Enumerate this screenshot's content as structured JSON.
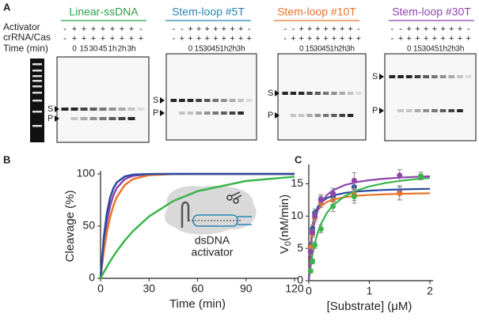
{
  "panel_a": {
    "label": "A",
    "row_labels": [
      "Activator",
      "crRNA/Cas",
      "Time (min)"
    ],
    "marker_lane": true,
    "groups": [
      {
        "title": "Linear-ssDNA",
        "color": "#2e9e48",
        "activator": [
          "-",
          "+",
          "+",
          "+",
          "+",
          "+",
          "+",
          "+",
          "-"
        ],
        "crrna": [
          "-",
          "+",
          "+",
          "+",
          "+",
          "+",
          "+",
          "+",
          "+"
        ],
        "time": [
          "0",
          "15",
          "30",
          "45",
          "1h",
          "2h",
          "3h"
        ],
        "s": "S",
        "p": "P"
      },
      {
        "title": "Stem-loop #5T",
        "color": "#2a84b4",
        "activator": [
          "-",
          "-",
          "+",
          "+",
          "+",
          "+",
          "+",
          "+",
          "+",
          "-"
        ],
        "crrna": [
          "-",
          "+",
          "+",
          "+",
          "+",
          "+",
          "+",
          "+",
          "+",
          "+"
        ],
        "time": [
          "0",
          "15",
          "30",
          "45",
          "1h",
          "2h",
          "3h"
        ],
        "s": "S",
        "p": "P"
      },
      {
        "title": "Stem-loop #10T",
        "color": "#e8742a",
        "activator": [
          "-",
          "-",
          "+",
          "+",
          "+",
          "+",
          "+",
          "+",
          "+",
          "-"
        ],
        "crrna": [
          "-",
          "+",
          "+",
          "+",
          "+",
          "+",
          "+",
          "+",
          "+",
          "+"
        ],
        "time": [
          "0",
          "15",
          "30",
          "45",
          "1h",
          "2h",
          "3h"
        ],
        "s": "S",
        "p": "P"
      },
      {
        "title": "Stem-loop #30T",
        "color": "#8e44ad",
        "activator": [
          "-",
          "-",
          "+",
          "+",
          "+",
          "+",
          "+",
          "+",
          "+",
          "-"
        ],
        "crrna": [
          "-",
          "+",
          "+",
          "+",
          "+",
          "+",
          "+",
          "+",
          "+",
          "+"
        ],
        "time": [
          "0",
          "15",
          "30",
          "45",
          "1h",
          "2h",
          "3h"
        ],
        "s": "S",
        "p": "P"
      }
    ]
  },
  "chart_data": [
    {
      "type": "line",
      "label": "B",
      "ylabel": "Cleavage (%)",
      "xlabel": "Time (min)",
      "inset_text": [
        "dsDNA",
        "activator"
      ],
      "x": [
        0,
        2,
        4,
        6,
        8,
        10,
        15,
        20,
        30,
        45,
        60,
        90,
        120
      ],
      "xlim": [
        0,
        120
      ],
      "xticks": [
        0,
        30,
        60,
        90,
        120
      ],
      "ylim": [
        0,
        100
      ],
      "yticks": [
        0,
        50,
        100
      ],
      "series": [
        {
          "color": "#8e44ad",
          "values": [
            0,
            33.0,
            55.1,
            69.9,
            79.8,
            86.5,
            95.0,
            98.2,
            99.8,
            100,
            100,
            100,
            100
          ]
        },
        {
          "color": "#e8742a",
          "values": [
            0,
            25.9,
            45.1,
            59.3,
            69.9,
            77.7,
            89.5,
            95.0,
            98.9,
            99.9,
            100,
            100,
            100
          ]
        },
        {
          "color": "#2a4aa0",
          "values": [
            0,
            39.3,
            63.2,
            77.7,
            86.5,
            91.8,
            97.6,
            99.3,
            99.9,
            100,
            100,
            100,
            100
          ]
        },
        {
          "color": "#3ab54a",
          "values": [
            0,
            5.8,
            11.3,
            16.5,
            21.3,
            25.9,
            36.2,
            45.1,
            59.3,
            74.1,
            83.5,
            93.3,
            97.3
          ]
        }
      ]
    },
    {
      "type": "scatter",
      "label": "C",
      "ylabel": "V",
      "ylabel_sub": "0",
      "ylabel_unit": "(nM/min)",
      "xlabel": "[Substrate] (μM)",
      "xlim": [
        0,
        2
      ],
      "xticks": [
        0,
        1,
        2
      ],
      "ylim": [
        0,
        17.5
      ],
      "yticks": [
        0,
        5,
        10,
        15
      ],
      "fit_x": [
        0,
        0.05,
        0.1,
        0.15,
        0.2,
        0.3,
        0.4,
        0.6,
        0.8,
        1,
        1.25,
        1.5,
        1.75,
        2
      ],
      "series": [
        {
          "color": "#2a4aa0",
          "x": [
            0.03,
            0.06,
            0.1,
            0.2,
            0.4,
            0.75,
            1.5
          ],
          "values": [
            5.5,
            8,
            10.5,
            12.6,
            13,
            14.5,
            13.6
          ],
          "errors": [
            0.5,
            0.6,
            0.6,
            0.7,
            0.8,
            1.0,
            1.1
          ],
          "fit": [
            0,
            8.06,
            10.36,
            11.45,
            12.08,
            12.79,
            13.18,
            13.59,
            13.81,
            13.94,
            14.05,
            14.12,
            14.18,
            14.22
          ]
        },
        {
          "color": "#e8742a",
          "x": [
            0.03,
            0.06,
            0.1,
            0.2,
            0.4,
            0.75,
            1.5
          ],
          "values": [
            5.2,
            7.2,
            9.7,
            12,
            12.5,
            13.3,
            13.5
          ],
          "errors": [
            0.5,
            0.5,
            0.6,
            0.7,
            0.7,
            0.9,
            1.0
          ],
          "fit": [
            0,
            7.67,
            9.86,
            10.89,
            11.5,
            12.18,
            12.55,
            12.94,
            13.14,
            13.27,
            13.37,
            13.44,
            13.49,
            13.53
          ]
        },
        {
          "color": "#3ab54a",
          "x": [
            0.03,
            0.06,
            0.1,
            0.2,
            0.4,
            0.75,
            1.85
          ],
          "values": [
            1.5,
            3,
            5.5,
            8,
            11.5,
            13,
            16.2
          ],
          "errors": [
            0.3,
            0.4,
            0.5,
            0.6,
            0.8,
            1.0,
            0.6
          ],
          "fit": [
            0,
            3.5,
            5.83,
            7.5,
            8.75,
            10.5,
            11.67,
            13.13,
            14.0,
            14.58,
            15.09,
            15.44,
            15.71,
            15.91
          ]
        },
        {
          "color": "#8e44ad",
          "x": [
            0.03,
            0.06,
            0.1,
            0.2,
            0.4,
            0.75,
            1.5
          ],
          "values": [
            4.5,
            7.5,
            10,
            12.5,
            13.5,
            15.5,
            16.3
          ],
          "errors": [
            0.5,
            0.5,
            0.6,
            0.6,
            0.8,
            1.2,
            0.9
          ],
          "fit": [
            0,
            6.46,
            9.33,
            10.96,
            12.0,
            13.26,
            14.0,
            14.82,
            15.27,
            15.56,
            15.79,
            15.95,
            16.07,
            16.15
          ]
        }
      ]
    }
  ]
}
